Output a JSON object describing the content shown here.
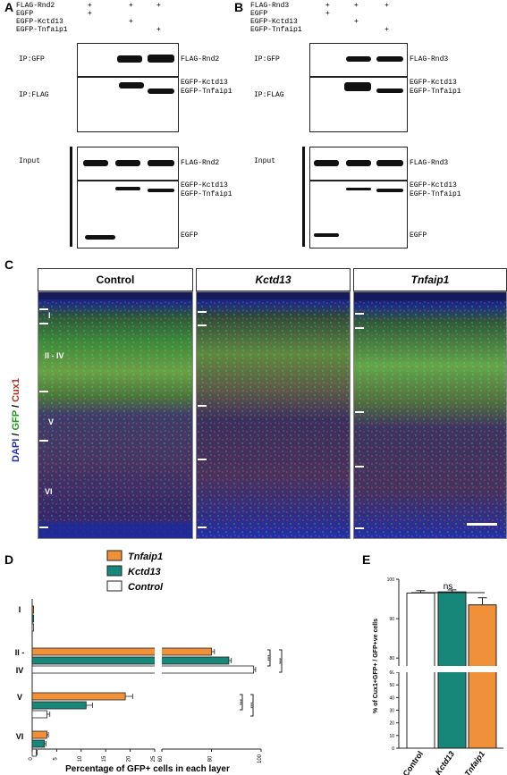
{
  "panelA": {
    "letter": "A",
    "conditions": [
      {
        "label": "FLAG-Rnd2",
        "marks": [
          "+",
          "+",
          "+"
        ]
      },
      {
        "label": "EGFP",
        "marks": [
          "+",
          "",
          ""
        ]
      },
      {
        "label": "EGFP-Kctd13",
        "marks": [
          "",
          "+",
          ""
        ]
      },
      {
        "label": "EGFP-Tnfaip1",
        "marks": [
          "",
          "",
          "+"
        ]
      }
    ],
    "ip_gfp": "IP:GFP",
    "ip_flag": "IP:FLAG",
    "input": "Input",
    "band_labels": {
      "ip_gfp": "FLAG-Rnd2",
      "ip_flag_1": "EGFP-Kctd13",
      "ip_flag_2": "EGFP-Tnfaip1",
      "input_top": "FLAG-Rnd2",
      "input_1": "EGFP-Kctd13",
      "input_2": "EGFP-Tnfaip1",
      "input_3": "EGFP"
    }
  },
  "panelB": {
    "letter": "B",
    "conditions": [
      {
        "label": "FLAG-Rnd3",
        "marks": [
          "+",
          "+",
          "+"
        ]
      },
      {
        "label": "EGFP",
        "marks": [
          "+",
          "",
          ""
        ]
      },
      {
        "label": "EGFP-Kctd13",
        "marks": [
          "",
          "+",
          ""
        ]
      },
      {
        "label": "EGFP-Tnfaip1",
        "marks": [
          "",
          "",
          "+"
        ]
      }
    ],
    "ip_gfp": "IP:GFP",
    "ip_flag": "IP:FLAG",
    "input": "Input",
    "band_labels": {
      "ip_gfp": "FLAG-Rnd3",
      "ip_flag_1": "EGFP-Kctd13",
      "ip_flag_2": "EGFP-Tnfaip1",
      "input_top": "FLAG-Rnd3",
      "input_1": "EGFP-Kctd13",
      "input_2": "EGFP-Tnfaip1",
      "input_3": "EGFP"
    }
  },
  "panelC": {
    "letter": "C",
    "headers": [
      "Control",
      "Kctd13",
      "Tnfaip1"
    ],
    "stain_dapi": "DAPI",
    "stain_sep1": " / ",
    "stain_gfp": "GFP",
    "stain_sep2": " / ",
    "stain_cux": "Cux1",
    "layers": [
      "I",
      "II - IV",
      "V",
      "VI"
    ],
    "colors": {
      "dapi": "#2a2fb8",
      "gfp": "#2fae2f",
      "cux": "#c0392b"
    }
  },
  "chart_data": [
    {
      "panel": "D",
      "type": "bar",
      "orientation": "horizontal",
      "categories": [
        "I",
        "II - IV",
        "V",
        "VI"
      ],
      "category_labels": [
        "I",
        "II -",
        "IV",
        "V",
        "VI"
      ],
      "series": [
        {
          "name": "Tnfaip1",
          "color": "#f0913a",
          "values": [
            0.3,
            80,
            19,
            3
          ],
          "errors": [
            0,
            1.2,
            1.5,
            0.3
          ]
        },
        {
          "name": "Kctd13",
          "color": "#17877a",
          "values": [
            0.3,
            87,
            11,
            2.5
          ],
          "errors": [
            0,
            1.0,
            1.3,
            0.3
          ]
        },
        {
          "name": "Control",
          "color": "#ffffff",
          "values": [
            0.3,
            97,
            3,
            0.8
          ],
          "errors": [
            0,
            0.8,
            0.6,
            0.2
          ]
        }
      ],
      "xlabel": "Percentage of GFP+ cells in each layer",
      "xticks_left": [
        "0",
        "5",
        "10",
        "15",
        "20",
        "25"
      ],
      "xticks_right": [
        "60",
        "80",
        "100"
      ],
      "axis_break": [
        25,
        55
      ],
      "significance": {
        "II-IV": {
          "inner": "***",
          "outer": "***"
        },
        "V": {
          "inner": "***",
          "outer": "***"
        }
      },
      "legend_position": "top"
    },
    {
      "panel": "E",
      "type": "bar",
      "categories": [
        "Control",
        "Kctd13",
        "Tnfaip1"
      ],
      "values": [
        96.5,
        96.8,
        93.5
      ],
      "errors": [
        0.6,
        0.5,
        1.8
      ],
      "colors": [
        "#ffffff",
        "#17877a",
        "#f0913a"
      ],
      "ylabel": "% of Cux1+GFP+ / GFP+ve cells",
      "yticks_bottom": [
        "0",
        "10",
        "20",
        "30",
        "40",
        "50",
        "60"
      ],
      "yticks_top": [
        "80",
        "90",
        "100"
      ],
      "axis_break": [
        60,
        78
      ],
      "annotation": "ns"
    }
  ]
}
